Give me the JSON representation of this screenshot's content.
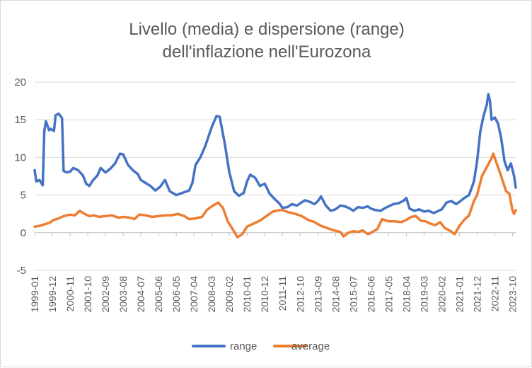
{
  "chart_data": {
    "type": "line",
    "title": "Livello (media) e dispersione (range)",
    "subtitle": "dell'inflazione nell'Eurozona",
    "ylim": [
      -5,
      20
    ],
    "yticks": [
      -5,
      0,
      5,
      10,
      15,
      20
    ],
    "xticks": [
      "1999-01",
      "1999-12",
      "2000-11",
      "2001-10",
      "2002-09",
      "2003-08",
      "2004-07",
      "2005-06",
      "2006-05",
      "2007-04",
      "2008-03",
      "2009-02",
      "2010-01",
      "2010-12",
      "2011-11",
      "2012-10",
      "2013-09",
      "2014-08",
      "2015-07",
      "2016-06",
      "2017-05",
      "2018-04",
      "2019-03",
      "2020-02",
      "2021-01",
      "2021-12",
      "2022-11",
      "2023-10"
    ],
    "grid": true,
    "legend": "bottom",
    "series": [
      {
        "name": "range",
        "color": "#4472c4",
        "points": [
          [
            "1999-01",
            8.3
          ],
          [
            "1999-02",
            6.8
          ],
          [
            "1999-04",
            7.0
          ],
          [
            "1999-06",
            6.3
          ],
          [
            "1999-07",
            13.5
          ],
          [
            "1999-08",
            14.8
          ],
          [
            "1999-10",
            13.6
          ],
          [
            "1999-11",
            13.8
          ],
          [
            "2000-01",
            13.5
          ],
          [
            "2000-02",
            15.6
          ],
          [
            "2000-04",
            15.8
          ],
          [
            "2000-06",
            15.2
          ],
          [
            "2000-07",
            8.2
          ],
          [
            "2000-09",
            8.0
          ],
          [
            "2000-11",
            8.1
          ],
          [
            "2001-01",
            8.6
          ],
          [
            "2001-04",
            8.3
          ],
          [
            "2001-07",
            7.6
          ],
          [
            "2001-09",
            6.5
          ],
          [
            "2001-11",
            6.2
          ],
          [
            "2002-01",
            6.9
          ],
          [
            "2002-04",
            7.6
          ],
          [
            "2002-06",
            8.6
          ],
          [
            "2002-09",
            8.0
          ],
          [
            "2002-12",
            8.5
          ],
          [
            "2003-03",
            9.2
          ],
          [
            "2003-06",
            10.5
          ],
          [
            "2003-08",
            10.4
          ],
          [
            "2003-11",
            9.0
          ],
          [
            "2004-02",
            8.3
          ],
          [
            "2004-05",
            7.8
          ],
          [
            "2004-07",
            7.0
          ],
          [
            "2004-10",
            6.6
          ],
          [
            "2005-01",
            6.2
          ],
          [
            "2005-04",
            5.6
          ],
          [
            "2005-07",
            6.1
          ],
          [
            "2005-10",
            7.0
          ],
          [
            "2006-01",
            5.5
          ],
          [
            "2006-05",
            5.0
          ],
          [
            "2006-09",
            5.3
          ],
          [
            "2007-01",
            5.6
          ],
          [
            "2007-03",
            6.6
          ],
          [
            "2007-05",
            9.0
          ],
          [
            "2007-08",
            10.0
          ],
          [
            "2007-11",
            11.5
          ],
          [
            "2008-03",
            14.0
          ],
          [
            "2008-06",
            15.5
          ],
          [
            "2008-08",
            15.4
          ],
          [
            "2008-11",
            12.0
          ],
          [
            "2009-02",
            8.0
          ],
          [
            "2009-05",
            5.5
          ],
          [
            "2009-08",
            4.9
          ],
          [
            "2009-11",
            5.3
          ],
          [
            "2010-01",
            6.8
          ],
          [
            "2010-03",
            7.7
          ],
          [
            "2010-06",
            7.3
          ],
          [
            "2010-09",
            6.2
          ],
          [
            "2010-12",
            6.5
          ],
          [
            "2011-03",
            5.2
          ],
          [
            "2011-06",
            4.5
          ],
          [
            "2011-09",
            3.9
          ],
          [
            "2011-11",
            3.3
          ],
          [
            "2012-02",
            3.4
          ],
          [
            "2012-05",
            3.8
          ],
          [
            "2012-08",
            3.6
          ],
          [
            "2012-10",
            3.9
          ],
          [
            "2013-01",
            4.3
          ],
          [
            "2013-04",
            4.1
          ],
          [
            "2013-07",
            3.8
          ],
          [
            "2013-09",
            4.2
          ],
          [
            "2013-11",
            4.8
          ],
          [
            "2014-02",
            3.6
          ],
          [
            "2014-05",
            2.9
          ],
          [
            "2014-08",
            3.1
          ],
          [
            "2014-11",
            3.6
          ],
          [
            "2015-02",
            3.5
          ],
          [
            "2015-05",
            3.2
          ],
          [
            "2015-07",
            2.9
          ],
          [
            "2015-10",
            3.4
          ],
          [
            "2016-01",
            3.3
          ],
          [
            "2016-04",
            3.5
          ],
          [
            "2016-06",
            3.2
          ],
          [
            "2016-09",
            3.0
          ],
          [
            "2016-12",
            2.9
          ],
          [
            "2017-03",
            3.3
          ],
          [
            "2017-05",
            3.5
          ],
          [
            "2017-08",
            3.8
          ],
          [
            "2017-11",
            3.9
          ],
          [
            "2018-02",
            4.2
          ],
          [
            "2018-04",
            4.6
          ],
          [
            "2018-06",
            3.2
          ],
          [
            "2018-09",
            2.9
          ],
          [
            "2018-12",
            3.1
          ],
          [
            "2019-03",
            2.8
          ],
          [
            "2019-06",
            2.9
          ],
          [
            "2019-09",
            2.6
          ],
          [
            "2020-02",
            3.1
          ],
          [
            "2020-05",
            4.0
          ],
          [
            "2020-08",
            4.2
          ],
          [
            "2020-11",
            3.8
          ],
          [
            "2021-01",
            4.1
          ],
          [
            "2021-04",
            4.6
          ],
          [
            "2021-07",
            5.0
          ],
          [
            "2021-10",
            6.8
          ],
          [
            "2021-12",
            9.5
          ],
          [
            "2022-02",
            13.5
          ],
          [
            "2022-04",
            15.5
          ],
          [
            "2022-06",
            17.0
          ],
          [
            "2022-07",
            18.4
          ],
          [
            "2022-08",
            17.5
          ],
          [
            "2022-09",
            15.0
          ],
          [
            "2022-11",
            15.3
          ],
          [
            "2023-01",
            14.5
          ],
          [
            "2023-03",
            12.5
          ],
          [
            "2023-05",
            9.5
          ],
          [
            "2023-07",
            8.3
          ],
          [
            "2023-09",
            9.2
          ],
          [
            "2023-11",
            7.5
          ],
          [
            "2023-12",
            6.0
          ]
        ]
      },
      {
        "name": "average",
        "color": "#ed7d31",
        "points": [
          [
            "1999-01",
            0.8
          ],
          [
            "1999-04",
            0.9
          ],
          [
            "1999-07",
            1.1
          ],
          [
            "1999-10",
            1.3
          ],
          [
            "2000-01",
            1.7
          ],
          [
            "2000-04",
            1.9
          ],
          [
            "2000-07",
            2.2
          ],
          [
            "2000-11",
            2.4
          ],
          [
            "2001-02",
            2.3
          ],
          [
            "2001-05",
            2.9
          ],
          [
            "2001-08",
            2.5
          ],
          [
            "2001-11",
            2.2
          ],
          [
            "2002-02",
            2.3
          ],
          [
            "2002-05",
            2.1
          ],
          [
            "2002-09",
            2.2
          ],
          [
            "2003-01",
            2.3
          ],
          [
            "2003-05",
            2.0
          ],
          [
            "2003-08",
            2.1
          ],
          [
            "2003-12",
            2.0
          ],
          [
            "2004-03",
            1.8
          ],
          [
            "2004-06",
            2.4
          ],
          [
            "2004-10",
            2.3
          ],
          [
            "2005-02",
            2.1
          ],
          [
            "2005-06",
            2.2
          ],
          [
            "2005-10",
            2.3
          ],
          [
            "2006-02",
            2.3
          ],
          [
            "2006-06",
            2.5
          ],
          [
            "2006-10",
            2.2
          ],
          [
            "2007-01",
            1.8
          ],
          [
            "2007-05",
            1.9
          ],
          [
            "2007-09",
            2.1
          ],
          [
            "2007-12",
            3.0
          ],
          [
            "2008-03",
            3.5
          ],
          [
            "2008-07",
            4.0
          ],
          [
            "2008-10",
            3.3
          ],
          [
            "2009-01",
            1.5
          ],
          [
            "2009-04",
            0.5
          ],
          [
            "2009-07",
            -0.6
          ],
          [
            "2009-10",
            -0.2
          ],
          [
            "2010-01",
            0.8
          ],
          [
            "2010-05",
            1.2
          ],
          [
            "2010-09",
            1.6
          ],
          [
            "2011-01",
            2.2
          ],
          [
            "2011-05",
            2.8
          ],
          [
            "2011-09",
            3.0
          ],
          [
            "2011-11",
            3.0
          ],
          [
            "2012-03",
            2.7
          ],
          [
            "2012-07",
            2.5
          ],
          [
            "2012-11",
            2.2
          ],
          [
            "2013-03",
            1.7
          ],
          [
            "2013-07",
            1.4
          ],
          [
            "2013-11",
            0.9
          ],
          [
            "2014-03",
            0.6
          ],
          [
            "2014-07",
            0.3
          ],
          [
            "2014-11",
            0.1
          ],
          [
            "2015-01",
            -0.5
          ],
          [
            "2015-04",
            0.0
          ],
          [
            "2015-07",
            0.2
          ],
          [
            "2015-10",
            0.1
          ],
          [
            "2016-01",
            0.3
          ],
          [
            "2016-04",
            -0.2
          ],
          [
            "2016-07",
            0.1
          ],
          [
            "2016-10",
            0.5
          ],
          [
            "2017-01",
            1.8
          ],
          [
            "2017-05",
            1.5
          ],
          [
            "2017-09",
            1.5
          ],
          [
            "2018-01",
            1.4
          ],
          [
            "2018-04",
            1.7
          ],
          [
            "2018-07",
            2.1
          ],
          [
            "2018-10",
            2.2
          ],
          [
            "2019-01",
            1.6
          ],
          [
            "2019-04",
            1.5
          ],
          [
            "2019-07",
            1.2
          ],
          [
            "2019-10",
            1.0
          ],
          [
            "2020-01",
            1.4
          ],
          [
            "2020-04",
            0.6
          ],
          [
            "2020-07",
            0.3
          ],
          [
            "2020-10",
            -0.2
          ],
          [
            "2021-01",
            0.9
          ],
          [
            "2021-04",
            1.7
          ],
          [
            "2021-07",
            2.3
          ],
          [
            "2021-10",
            4.2
          ],
          [
            "2021-12",
            5.0
          ],
          [
            "2022-03",
            7.5
          ],
          [
            "2022-06",
            8.7
          ],
          [
            "2022-09",
            9.9
          ],
          [
            "2022-10",
            10.5
          ],
          [
            "2022-12",
            9.3
          ],
          [
            "2023-03",
            7.5
          ],
          [
            "2023-06",
            5.5
          ],
          [
            "2023-08",
            5.2
          ],
          [
            "2023-10",
            2.9
          ],
          [
            "2023-11",
            2.5
          ],
          [
            "2023-12",
            3.0
          ]
        ]
      }
    ]
  }
}
